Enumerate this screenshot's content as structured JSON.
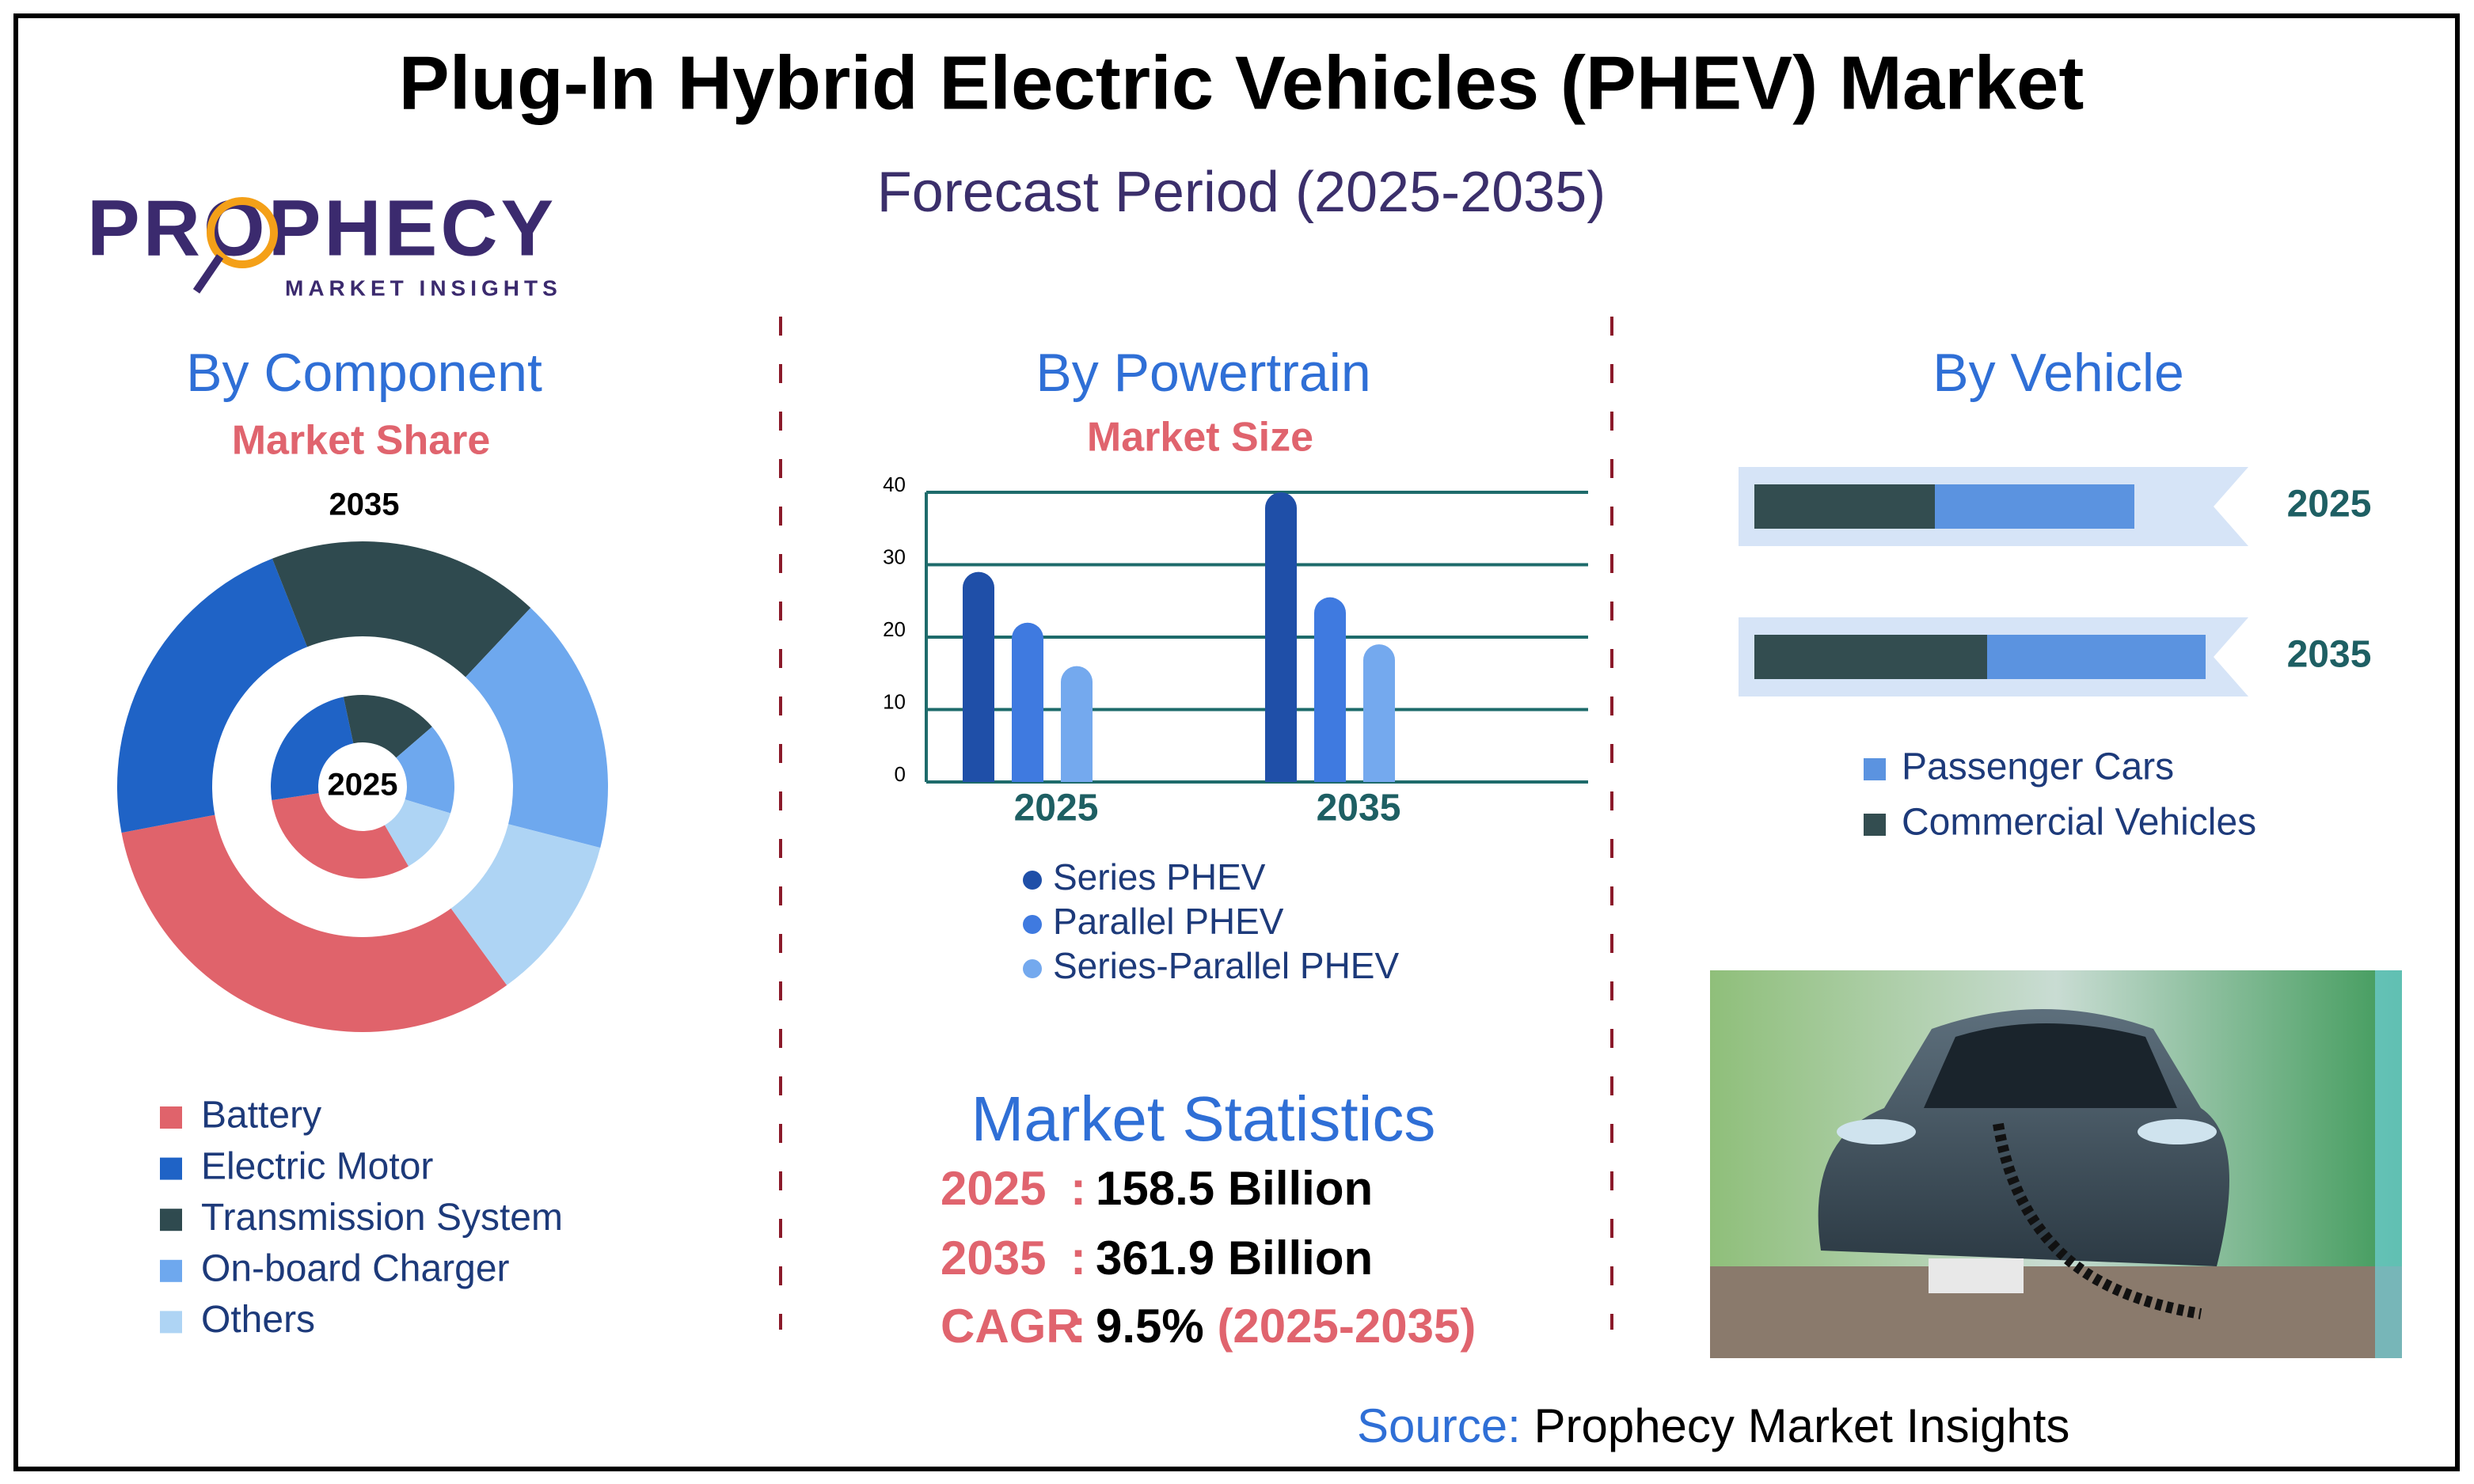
{
  "header": {
    "title": "Plug-In Hybrid Electric Vehicles (PHEV) Market",
    "subtitle": "Forecast Period (2025-2035)"
  },
  "logo": {
    "name": "PROPHECY",
    "tagline": "MARKET INSIGHTS"
  },
  "chart_data": [
    {
      "type": "donut",
      "title": "By Component",
      "subtitle": "Market Share",
      "categories": [
        "Battery",
        "Electric Motor",
        "Transmission System",
        "On-board Charger",
        "Others"
      ],
      "colors": [
        "#e0636b",
        "#1f63c6",
        "#2f4a4f",
        "#6ea8ee",
        "#aed4f4"
      ],
      "series": [
        {
          "name": "2035",
          "values": [
            32,
            22,
            18,
            17,
            11
          ]
        },
        {
          "name": "2025",
          "values": [
            31,
            24,
            17,
            16,
            12
          ]
        }
      ]
    },
    {
      "type": "bar",
      "title": "By Powertrain",
      "subtitle": "Market Size",
      "categories": [
        "2025",
        "2035"
      ],
      "series": [
        {
          "name": "Series PHEV",
          "color": "#1f4fa8",
          "values": [
            29,
            40
          ]
        },
        {
          "name": "Parallel PHEV",
          "color": "#3f7ae0",
          "values": [
            22,
            25.5
          ]
        },
        {
          "name": "Series-Parallel PHEV",
          "color": "#74a9ee",
          "values": [
            16,
            19
          ]
        }
      ],
      "ylim": [
        0,
        40
      ],
      "yticks": [
        0,
        10,
        20,
        30,
        40
      ],
      "grid": true
    },
    {
      "type": "stacked_hbar",
      "title": "By Vehicle",
      "categories": [
        "2025",
        "2035"
      ],
      "series": [
        {
          "name": "Passenger Cars",
          "color": "#5b93e0",
          "values": [
            42,
            46
          ]
        },
        {
          "name": "Commercial Vehicles",
          "color": "#334d50",
          "values": [
            38,
            49
          ]
        }
      ],
      "xlim": [
        0,
        100
      ]
    }
  ],
  "statistics": {
    "title": "Market Statistics",
    "separator": ":",
    "rows": [
      {
        "label": "2025",
        "value": "158.5 Billion"
      },
      {
        "label": "2035",
        "value": "361.9 Billion"
      },
      {
        "label": "CAGR",
        "value": "9.5%",
        "period": "(2025-2035)"
      }
    ]
  },
  "source": {
    "label": "Source:",
    "text": "Prophecy Market Insights"
  }
}
